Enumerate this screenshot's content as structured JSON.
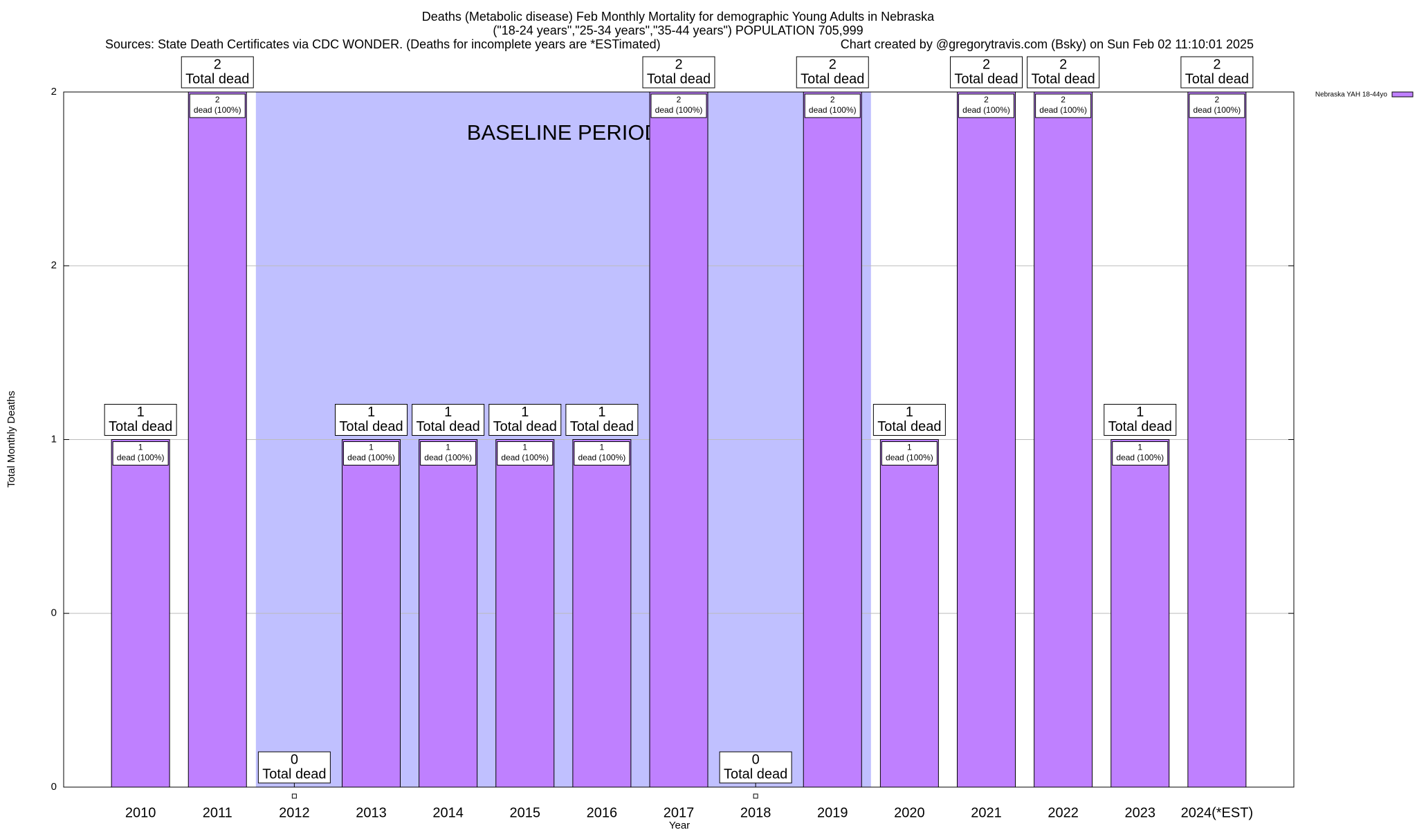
{
  "chart_data": {
    "type": "bar",
    "title": "Deaths (Metabolic disease) Feb Monthly Mortality for demographic Young Adults in Nebraska",
    "subtitle": "(\"18-24 years\",\"25-34 years\",\"35-44 years\") POPULATION 705,999",
    "sources": "Sources: State Death Certificates via CDC WONDER. (Deaths for incomplete years are *ESTimated)",
    "credit": "Chart created by @gregorytravis.com (Bsky) on Sun Feb 02 11:10:01 2025",
    "x_label": "Year",
    "y_label": "Total Monthly Deaths",
    "categories": [
      "2010",
      "2011",
      "2012",
      "2013",
      "2014",
      "2015",
      "2016",
      "2017",
      "2018",
      "2019",
      "2020",
      "2021",
      "2022",
      "2023",
      "2024(*EST)"
    ],
    "series": [
      {
        "name": "Nebraska YAH 18-44yo",
        "color": "#bf80ff",
        "values": [
          1,
          2,
          0,
          1,
          1,
          1,
          1,
          2,
          0,
          2,
          1,
          2,
          2,
          1,
          2
        ]
      }
    ],
    "total_label": "Total dead",
    "inner_label": "dead (100%)",
    "baseline": {
      "label": "BASELINE PERIOD",
      "start": "2012",
      "end": "2019",
      "color": "#c0c0ff"
    },
    "ylim": [
      0,
      2
    ],
    "yticks": [
      0,
      {
        "value": 0.5,
        "label": "0"
      },
      1,
      {
        "value": 1.5,
        "label": "2"
      },
      2
    ],
    "grid": true,
    "legend": "outside-right"
  }
}
